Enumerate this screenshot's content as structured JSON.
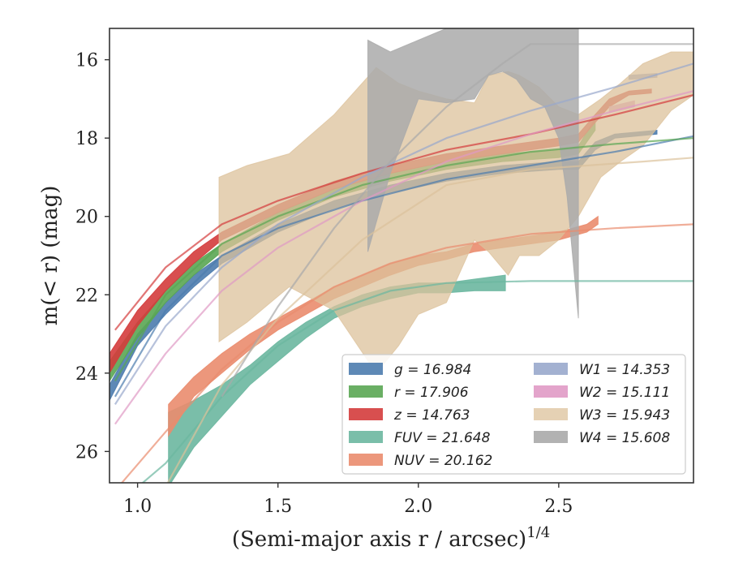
{
  "chart_data": {
    "type": "line",
    "xlabel": "(Semi-major axis r / arcsec)",
    "xlabel_superscript": "1/4",
    "ylabel": "m(< r) (mag)",
    "xlim": [
      0.9,
      2.98
    ],
    "ylim": [
      26.8,
      15.2
    ],
    "x_ticks": [
      1.0,
      1.5,
      2.0,
      2.5
    ],
    "x_tick_labels": [
      "1.0",
      "1.5",
      "2.0",
      "2.5"
    ],
    "y_ticks": [
      16,
      18,
      20,
      22,
      24,
      26
    ],
    "y_tick_labels": [
      "16",
      "18",
      "20",
      "22",
      "24",
      "26"
    ],
    "legend_placement": "lower-right",
    "series": [
      {
        "key": "g",
        "legend": "g = 16.984",
        "color": "#4c7cae",
        "band": [
          [
            0.9,
            24.3,
            24.7
          ],
          [
            1.0,
            23.0,
            23.3
          ],
          [
            1.1,
            22.2,
            22.5
          ],
          [
            1.2,
            21.5,
            21.8
          ],
          [
            1.3,
            21.0,
            21.2
          ],
          [
            1.5,
            20.2,
            20.4
          ],
          [
            1.7,
            19.6,
            19.8
          ],
          [
            1.9,
            19.2,
            19.4
          ],
          [
            2.1,
            18.9,
            19.1
          ],
          [
            2.3,
            18.7,
            18.9
          ],
          [
            2.5,
            18.6,
            18.8
          ],
          [
            2.57,
            18.6,
            18.8
          ],
          [
            2.63,
            18.1,
            18.3
          ],
          [
            2.7,
            17.9,
            18.0
          ],
          [
            2.85,
            17.8,
            17.9
          ]
        ],
        "model": [
          [
            0.92,
            24.6
          ],
          [
            1.1,
            22.4
          ],
          [
            1.3,
            21.0
          ],
          [
            1.5,
            20.3
          ],
          [
            1.8,
            19.6
          ],
          [
            2.1,
            19.05
          ],
          [
            2.4,
            18.7
          ],
          [
            2.7,
            18.35
          ],
          [
            2.98,
            17.95
          ]
        ]
      },
      {
        "key": "r",
        "legend": "r = 17.906",
        "color": "#5aa653",
        "band": [
          [
            0.9,
            23.7,
            24.2
          ],
          [
            1.0,
            22.7,
            23.1
          ],
          [
            1.1,
            21.9,
            22.2
          ],
          [
            1.2,
            21.2,
            21.5
          ],
          [
            1.3,
            20.7,
            20.9
          ],
          [
            1.5,
            19.9,
            20.1
          ],
          [
            1.7,
            19.3,
            19.5
          ],
          [
            1.9,
            18.9,
            19.1
          ],
          [
            2.1,
            18.6,
            18.8
          ],
          [
            2.3,
            18.4,
            18.6
          ],
          [
            2.5,
            18.3,
            18.5
          ],
          [
            2.57,
            18.2,
            18.4
          ],
          [
            2.63,
            17.5,
            17.8
          ]
        ],
        "model": [
          [
            0.92,
            24.2
          ],
          [
            1.1,
            22.0
          ],
          [
            1.3,
            20.7
          ],
          [
            1.5,
            20.0
          ],
          [
            1.8,
            19.2
          ],
          [
            2.1,
            18.7
          ],
          [
            2.4,
            18.35
          ],
          [
            2.7,
            18.15
          ],
          [
            2.98,
            18.0
          ]
        ]
      },
      {
        "key": "z",
        "legend": "z = 14.763",
        "color": "#d43c3c",
        "band": [
          [
            0.9,
            23.5,
            24.0
          ],
          [
            1.0,
            22.4,
            22.8
          ],
          [
            1.1,
            21.6,
            21.9
          ],
          [
            1.2,
            20.9,
            21.2
          ],
          [
            1.3,
            20.4,
            20.6
          ],
          [
            1.5,
            19.7,
            19.9
          ],
          [
            1.7,
            19.1,
            19.3
          ],
          [
            1.9,
            18.7,
            18.9
          ],
          [
            2.1,
            18.4,
            18.6
          ],
          [
            2.3,
            18.2,
            18.4
          ],
          [
            2.5,
            18.0,
            18.2
          ],
          [
            2.57,
            17.9,
            18.1
          ],
          [
            2.63,
            17.4,
            17.6
          ],
          [
            2.68,
            17.0,
            17.2
          ],
          [
            2.75,
            16.8,
            16.9
          ],
          [
            2.83,
            16.75,
            16.85
          ]
        ],
        "model": [
          [
            0.92,
            22.9
          ],
          [
            1.1,
            21.3
          ],
          [
            1.3,
            20.2
          ],
          [
            1.5,
            19.6
          ],
          [
            1.8,
            18.9
          ],
          [
            2.1,
            18.3
          ],
          [
            2.4,
            17.9
          ],
          [
            2.7,
            17.4
          ],
          [
            2.98,
            16.9
          ]
        ]
      },
      {
        "key": "FUV",
        "legend": "FUV = 21.648",
        "color": "#6bb7a0",
        "band": [
          [
            1.11,
            25.0,
            26.9
          ],
          [
            1.2,
            24.7,
            25.9
          ],
          [
            1.3,
            24.3,
            25.1
          ],
          [
            1.4,
            23.8,
            24.3
          ],
          [
            1.5,
            23.2,
            23.7
          ],
          [
            1.6,
            22.7,
            23.1
          ],
          [
            1.7,
            22.3,
            22.6
          ],
          [
            1.8,
            22.0,
            22.3
          ],
          [
            1.9,
            21.8,
            22.1
          ],
          [
            2.0,
            21.7,
            21.95
          ],
          [
            2.1,
            21.7,
            21.95
          ],
          [
            2.2,
            21.6,
            21.9
          ],
          [
            2.31,
            21.5,
            21.9
          ]
        ],
        "model": [
          [
            0.92,
            27.4
          ],
          [
            1.1,
            26.3
          ],
          [
            1.3,
            24.6
          ],
          [
            1.5,
            23.3
          ],
          [
            1.7,
            22.4
          ],
          [
            1.9,
            21.9
          ],
          [
            2.1,
            21.7
          ],
          [
            2.4,
            21.65
          ],
          [
            2.7,
            21.65
          ],
          [
            2.98,
            21.65
          ]
        ]
      },
      {
        "key": "NUV",
        "legend": "NUV = 20.162",
        "color": "#ea8c6e",
        "band": [
          [
            1.11,
            24.8,
            25.6
          ],
          [
            1.2,
            24.1,
            24.6
          ],
          [
            1.3,
            23.5,
            24.0
          ],
          [
            1.4,
            23.0,
            23.4
          ],
          [
            1.5,
            22.6,
            22.9
          ],
          [
            1.6,
            22.2,
            22.5
          ],
          [
            1.7,
            21.8,
            22.1
          ],
          [
            1.8,
            21.5,
            21.8
          ],
          [
            1.9,
            21.2,
            21.5
          ],
          [
            2.0,
            21.0,
            21.25
          ],
          [
            2.1,
            20.9,
            21.1
          ],
          [
            2.2,
            20.7,
            20.9
          ],
          [
            2.3,
            20.6,
            20.8
          ],
          [
            2.4,
            20.5,
            20.7
          ],
          [
            2.5,
            20.4,
            20.6
          ],
          [
            2.6,
            20.2,
            20.4
          ],
          [
            2.64,
            20.0,
            20.2
          ]
        ],
        "model": [
          [
            0.92,
            27.0
          ],
          [
            1.1,
            25.5
          ],
          [
            1.3,
            23.9
          ],
          [
            1.5,
            22.7
          ],
          [
            1.7,
            21.8
          ],
          [
            1.9,
            21.2
          ],
          [
            2.1,
            20.8
          ],
          [
            2.4,
            20.45
          ],
          [
            2.7,
            20.3
          ],
          [
            2.98,
            20.2
          ]
        ]
      },
      {
        "key": "W1",
        "legend": "W1 = 14.353",
        "color": "#99a8cc",
        "band": [
          [
            2.75,
            16.4,
            16.5
          ],
          [
            2.85,
            16.35,
            16.45
          ]
        ],
        "model": [
          [
            0.92,
            24.8
          ],
          [
            1.1,
            22.8
          ],
          [
            1.3,
            21.3
          ],
          [
            1.5,
            20.2
          ],
          [
            1.8,
            19.0
          ],
          [
            2.1,
            18.0
          ],
          [
            2.4,
            17.3
          ],
          [
            2.7,
            16.7
          ],
          [
            2.98,
            16.1
          ]
        ]
      },
      {
        "key": "W2",
        "legend": "W2 = 15.111",
        "color": "#e09ac5",
        "band": [
          [
            2.68,
            17.2,
            17.35
          ],
          [
            2.77,
            17.05,
            17.2
          ]
        ],
        "model": [
          [
            0.92,
            25.3
          ],
          [
            1.1,
            23.5
          ],
          [
            1.3,
            21.9
          ],
          [
            1.5,
            20.8
          ],
          [
            1.8,
            19.6
          ],
          [
            2.1,
            18.6
          ],
          [
            2.4,
            17.9
          ],
          [
            2.7,
            17.3
          ],
          [
            2.98,
            16.8
          ]
        ]
      },
      {
        "key": "W3",
        "legend": "W3 = 15.943",
        "color": "#dcc29b",
        "band": [
          [
            1.29,
            19.0,
            23.2
          ],
          [
            1.39,
            18.7,
            22.7
          ],
          [
            1.54,
            18.4,
            21.8
          ],
          [
            1.7,
            17.4,
            22.4
          ],
          [
            1.85,
            16.2,
            24.0
          ],
          [
            1.93,
            16.6,
            23.3
          ],
          [
            2.0,
            16.8,
            22.5
          ],
          [
            2.1,
            17.0,
            22.2
          ],
          [
            2.2,
            17.1,
            20.6
          ],
          [
            2.25,
            16.4,
            20.9
          ],
          [
            2.32,
            16.3,
            21.5
          ],
          [
            2.36,
            16.4,
            21.0
          ],
          [
            2.43,
            16.7,
            21.0
          ],
          [
            2.5,
            17.2,
            20.6
          ],
          [
            2.57,
            17.4,
            20.0
          ],
          [
            2.65,
            17.0,
            19.0
          ],
          [
            2.72,
            16.6,
            18.6
          ],
          [
            2.8,
            16.1,
            18.2
          ],
          [
            2.9,
            15.8,
            17.3
          ],
          [
            2.98,
            15.8,
            16.9
          ]
        ],
        "model": [
          [
            1.1,
            26.9
          ],
          [
            1.3,
            24.3
          ],
          [
            1.5,
            22.6
          ],
          [
            1.8,
            20.6
          ],
          [
            2.1,
            19.2
          ],
          [
            2.4,
            18.8
          ],
          [
            2.6,
            18.7
          ],
          [
            2.8,
            18.6
          ],
          [
            2.98,
            18.5
          ]
        ]
      },
      {
        "key": "W4",
        "legend": "W4 = 15.608",
        "color": "#aaaaaa",
        "band": [
          [
            1.82,
            15.5,
            20.9
          ],
          [
            1.9,
            15.8,
            18.9
          ],
          [
            2.0,
            15.5,
            17.0
          ],
          [
            2.1,
            15.2,
            17.1
          ],
          [
            2.2,
            15.1,
            17.0
          ],
          [
            2.25,
            15.1,
            16.4
          ],
          [
            2.3,
            15.1,
            16.3
          ],
          [
            2.35,
            15.1,
            16.5
          ],
          [
            2.4,
            15.1,
            17.0
          ],
          [
            2.45,
            15.1,
            17.2
          ],
          [
            2.5,
            15.1,
            18.0
          ],
          [
            2.53,
            15.1,
            19.5
          ],
          [
            2.57,
            15.1,
            22.6
          ]
        ],
        "model": [
          [
            1.3,
            24.6
          ],
          [
            1.5,
            22.3
          ],
          [
            1.7,
            20.3
          ],
          [
            1.9,
            18.6
          ],
          [
            2.1,
            17.2
          ],
          [
            2.3,
            16.1
          ],
          [
            2.4,
            15.6
          ],
          [
            2.6,
            15.6
          ],
          [
            2.98,
            15.6
          ]
        ]
      }
    ]
  }
}
